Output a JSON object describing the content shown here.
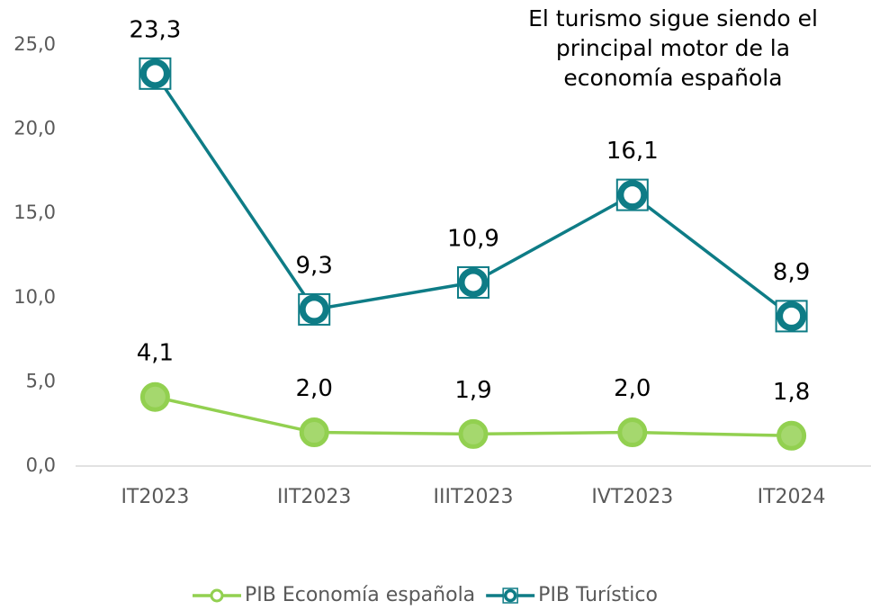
{
  "chart_data": {
    "type": "line",
    "title": "El turismo sigue siendo el principal motor de la economía española",
    "categories": [
      "IT2023",
      "IIT2023",
      "IIIT2023",
      "IVT2023",
      "IT2024"
    ],
    "series": [
      {
        "name": "PIB Economía española",
        "color": "#92d050",
        "values": [
          4.1,
          2.0,
          1.9,
          2.0,
          1.8
        ],
        "value_labels": [
          "4,1",
          "2,0",
          "1,9",
          "2,0",
          "1,8"
        ]
      },
      {
        "name": "PIB Turístico",
        "color": "#0e7c86",
        "values": [
          23.3,
          9.3,
          10.9,
          16.1,
          8.9
        ],
        "value_labels": [
          "23,3",
          "9,3",
          "10,9",
          "16,1",
          "8,9"
        ]
      }
    ],
    "ylim": [
      0,
      25
    ],
    "yticks": [
      {
        "value": 0,
        "label": "0,0"
      },
      {
        "value": 5,
        "label": "5,0"
      },
      {
        "value": 10,
        "label": "10,0"
      },
      {
        "value": 15,
        "label": "15,0"
      },
      {
        "value": 20,
        "label": "20,0"
      },
      {
        "value": 25,
        "label": "25,0"
      }
    ],
    "legend": "bottom"
  }
}
